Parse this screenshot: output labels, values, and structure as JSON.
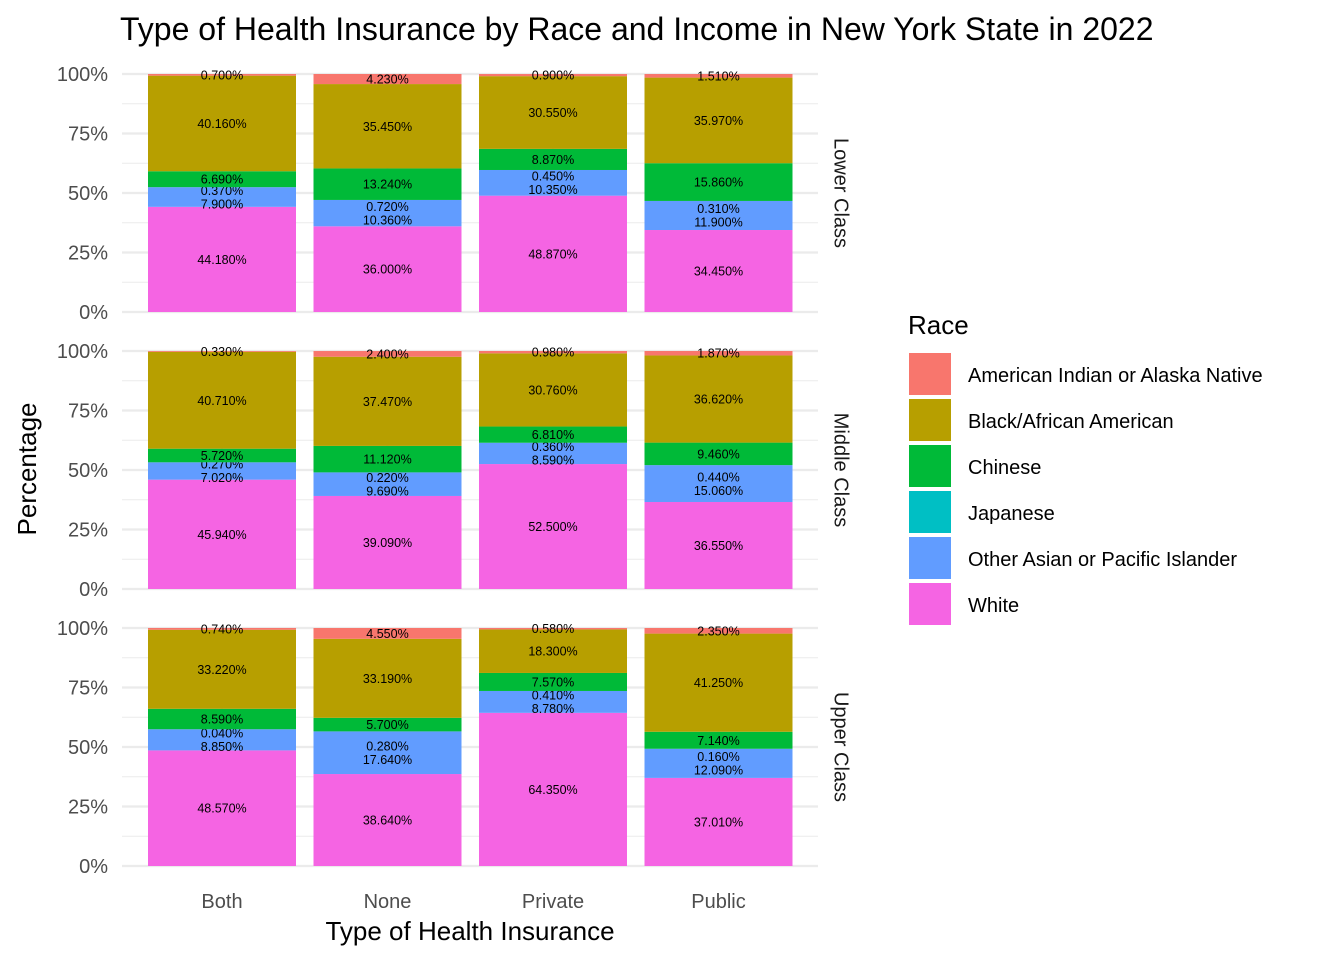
{
  "chart_data": {
    "type": "bar",
    "stacked": true,
    "normalized": true,
    "title": "Type of Health Insurance by Race and Income in New York State in 2022",
    "xlabel": "Type of Health Insurance",
    "ylabel": "Percentage",
    "ylim": [
      0,
      100
    ],
    "y_ticks": [
      "0%",
      "25%",
      "50%",
      "75%",
      "100%"
    ],
    "categories": [
      "Both",
      "None",
      "Private",
      "Public"
    ],
    "legend": {
      "title": "Race",
      "placement": "right",
      "items": [
        {
          "name": "American Indian or Alaska Native",
          "color": "#F8766D"
        },
        {
          "name": "Black/African American",
          "color": "#B79F00"
        },
        {
          "name": "Chinese",
          "color": "#00BA38"
        },
        {
          "name": "Japanese",
          "color": "#00BFC4"
        },
        {
          "name": "Other Asian or Pacific Islander",
          "color": "#619CFF"
        },
        {
          "name": "White",
          "color": "#F564E3"
        }
      ]
    },
    "grid": true,
    "panels": [
      {
        "label": "Lower Class",
        "series": [
          {
            "name": "American Indian or Alaska Native",
            "values": [
              0.7,
              4.23,
              0.9,
              1.51
            ],
            "labels": [
              "0.700%",
              "4.230%",
              "0.900%",
              "1.510%"
            ]
          },
          {
            "name": "Black/African American",
            "values": [
              40.16,
              35.45,
              30.55,
              35.97
            ],
            "labels": [
              "40.160%",
              "35.450%",
              "30.550%",
              "35.970%"
            ]
          },
          {
            "name": "Chinese",
            "values": [
              6.69,
              13.24,
              8.87,
              15.86
            ],
            "labels": [
              "6.690%",
              "13.240%",
              "8.870%",
              "15.860%"
            ]
          },
          {
            "name": "Japanese",
            "values": [
              0,
              0,
              0,
              0
            ],
            "labels": [
              "",
              "",
              "",
              ""
            ]
          },
          {
            "name": "Other Asian or Pacific Islander",
            "values": [
              8.27,
              11.08,
              10.8,
              12.21
            ],
            "labels": [
              "0.370%\n7.900%",
              "0.720%\n10.360%",
              "0.450%\n10.350%",
              "0.310%\n11.900%"
            ]
          },
          {
            "name": "White",
            "values": [
              44.18,
              36.0,
              48.87,
              34.45
            ],
            "labels": [
              "44.180%",
              "36.000%",
              "48.870%",
              "34.450%"
            ]
          }
        ]
      },
      {
        "label": "Middle Class",
        "series": [
          {
            "name": "American Indian or Alaska Native",
            "values": [
              0.33,
              2.4,
              0.98,
              1.87
            ],
            "labels": [
              "0.330%",
              "2.400%",
              "0.980%",
              "1.870%"
            ]
          },
          {
            "name": "Black/African American",
            "values": [
              40.71,
              37.47,
              30.76,
              36.62
            ],
            "labels": [
              "40.710%",
              "37.470%",
              "30.760%",
              "36.620%"
            ]
          },
          {
            "name": "Chinese",
            "values": [
              5.72,
              11.12,
              6.81,
              9.46
            ],
            "labels": [
              "5.720%",
              "11.120%",
              "6.810%",
              "9.460%"
            ]
          },
          {
            "name": "Japanese",
            "values": [
              0,
              0,
              0,
              0
            ],
            "labels": [
              "",
              "",
              "",
              ""
            ]
          },
          {
            "name": "Other Asian or Pacific Islander",
            "values": [
              7.29,
              9.91,
              8.95,
              15.5
            ],
            "labels": [
              "0.270%\n7.020%",
              "0.220%\n9.690%",
              "0.360%\n8.590%",
              "0.440%\n15.060%"
            ]
          },
          {
            "name": "White",
            "values": [
              45.94,
              39.09,
              52.5,
              36.55
            ],
            "labels": [
              "45.940%",
              "39.090%",
              "52.500%",
              "36.550%"
            ]
          }
        ]
      },
      {
        "label": "Upper Class",
        "series": [
          {
            "name": "American Indian or Alaska Native",
            "values": [
              0.74,
              4.55,
              0.58,
              2.35
            ],
            "labels": [
              "0.740%",
              "4.550%",
              "0.580%",
              "2.350%"
            ]
          },
          {
            "name": "Black/African American",
            "values": [
              33.22,
              33.19,
              18.3,
              41.25
            ],
            "labels": [
              "33.220%",
              "33.190%",
              "18.300%",
              "41.250%"
            ]
          },
          {
            "name": "Chinese",
            "values": [
              8.59,
              5.7,
              7.57,
              7.14
            ],
            "labels": [
              "8.590%",
              "5.700%",
              "7.570%",
              "7.140%"
            ]
          },
          {
            "name": "Japanese",
            "values": [
              0,
              0,
              0,
              0
            ],
            "labels": [
              "",
              "",
              "",
              ""
            ]
          },
          {
            "name": "Other Asian or Pacific Islander",
            "values": [
              8.89,
              17.92,
              9.19,
              12.25
            ],
            "labels": [
              "0.040%\n8.850%",
              "0.280%\n17.640%",
              "0.410%\n8.780%",
              "0.160%\n12.090%"
            ]
          },
          {
            "name": "White",
            "values": [
              48.57,
              38.64,
              64.35,
              37.01
            ],
            "labels": [
              "48.570%",
              "38.640%",
              "64.350%",
              "37.010%"
            ]
          }
        ]
      }
    ]
  }
}
